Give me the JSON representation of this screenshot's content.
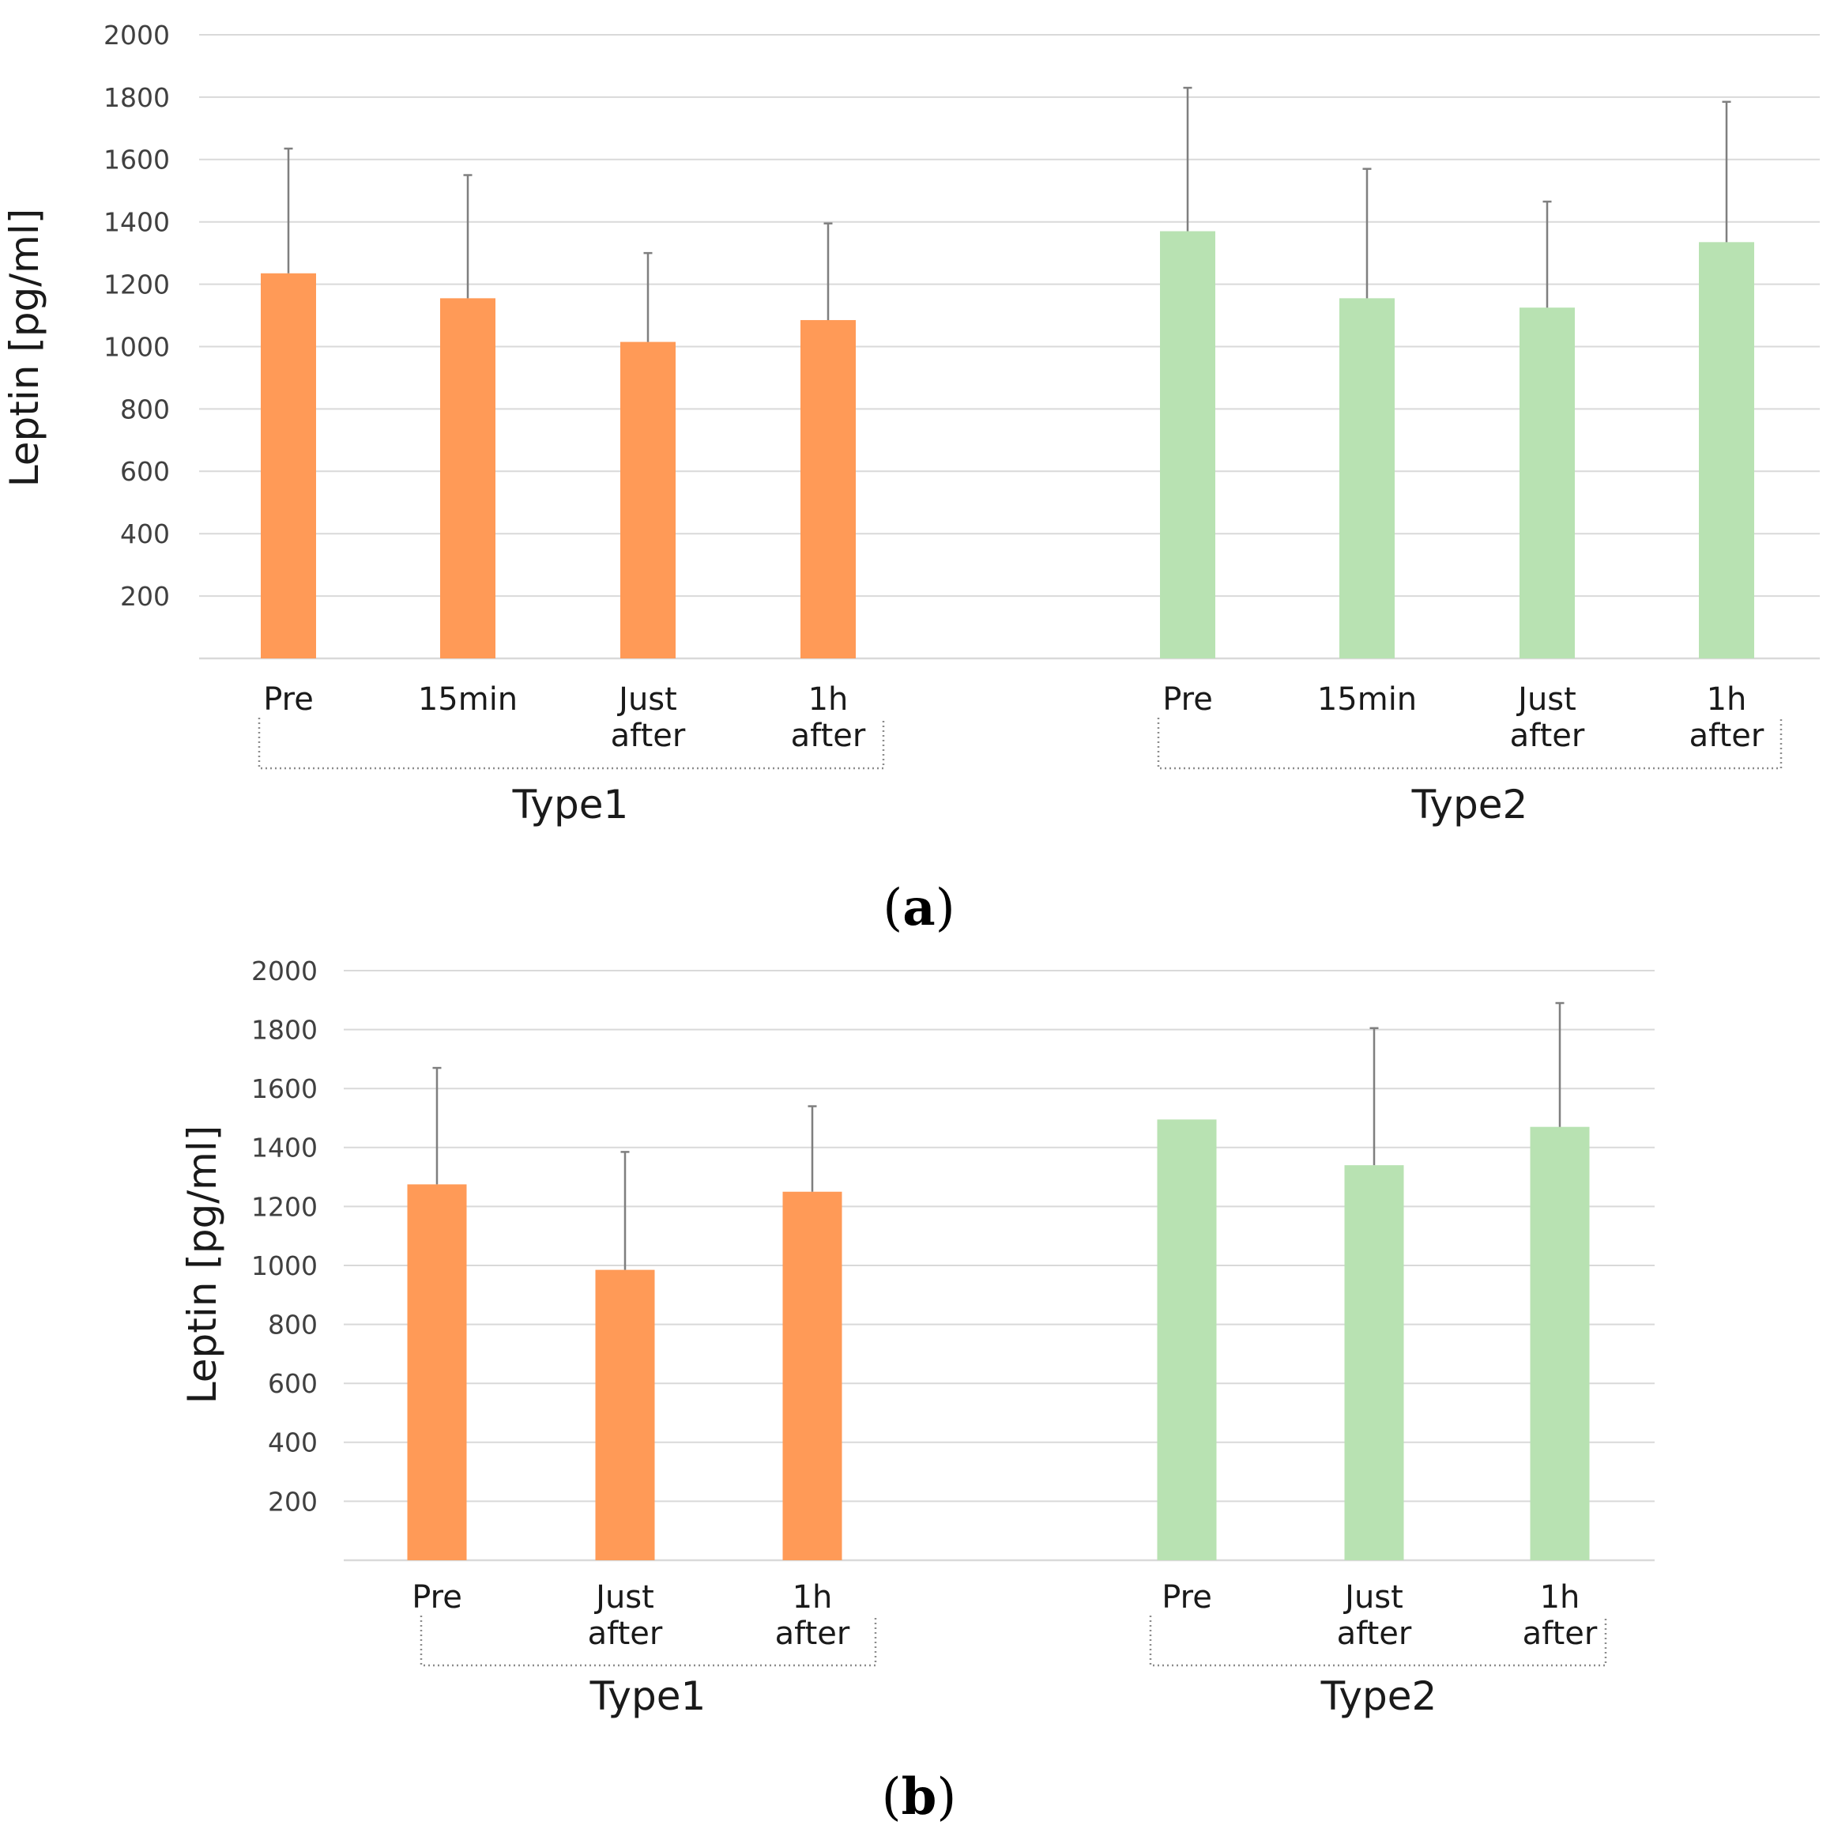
{
  "chart_data": [
    {
      "type": "bar",
      "panel_label": "a",
      "ylabel": "Leptin [pg/ml]",
      "ylim": [
        0,
        2000
      ],
      "yticks": [
        200,
        400,
        600,
        800,
        1000,
        1200,
        1400,
        1600,
        1800,
        2000
      ],
      "grid": true,
      "groups": [
        {
          "name": "Type1",
          "color": "#ff9a57",
          "bars": [
            {
              "label": [
                "Pre"
              ],
              "value": 1235,
              "error": 400
            },
            {
              "label": [
                "15min"
              ],
              "value": 1155,
              "error": 395
            },
            {
              "label": [
                "Just",
                "after"
              ],
              "value": 1015,
              "error": 285
            },
            {
              "label": [
                "1h",
                "after"
              ],
              "value": 1085,
              "error": 310
            }
          ]
        },
        {
          "name": "Type2",
          "color": "#b8e2b2",
          "bars": [
            {
              "label": [
                "Pre"
              ],
              "value": 1370,
              "error": 460
            },
            {
              "label": [
                "15min"
              ],
              "value": 1155,
              "error": 415
            },
            {
              "label": [
                "Just",
                "after"
              ],
              "value": 1125,
              "error": 340
            },
            {
              "label": [
                "1h",
                "after"
              ],
              "value": 1335,
              "error": 450
            }
          ]
        }
      ]
    },
    {
      "type": "bar",
      "panel_label": "b",
      "ylabel": "Leptin [pg/ml]",
      "ylim": [
        0,
        2000
      ],
      "yticks": [
        200,
        400,
        600,
        800,
        1000,
        1200,
        1400,
        1600,
        1800,
        2000
      ],
      "grid": true,
      "groups": [
        {
          "name": "Type1",
          "color": "#ff9a57",
          "bars": [
            {
              "label": [
                "Pre"
              ],
              "value": 1275,
              "error": 395
            },
            {
              "label": [
                "Just",
                "after"
              ],
              "value": 985,
              "error": 400
            },
            {
              "label": [
                "1h",
                "after"
              ],
              "value": 1250,
              "error": 290
            }
          ]
        },
        {
          "name": "Type2",
          "color": "#b8e2b2",
          "bars": [
            {
              "label": [
                "Pre"
              ],
              "value": 1495,
              "error": null
            },
            {
              "label": [
                "Just",
                "after"
              ],
              "value": 1340,
              "error": 465
            },
            {
              "label": [
                "1h",
                "after"
              ],
              "value": 1470,
              "error": 420
            }
          ]
        }
      ]
    }
  ]
}
